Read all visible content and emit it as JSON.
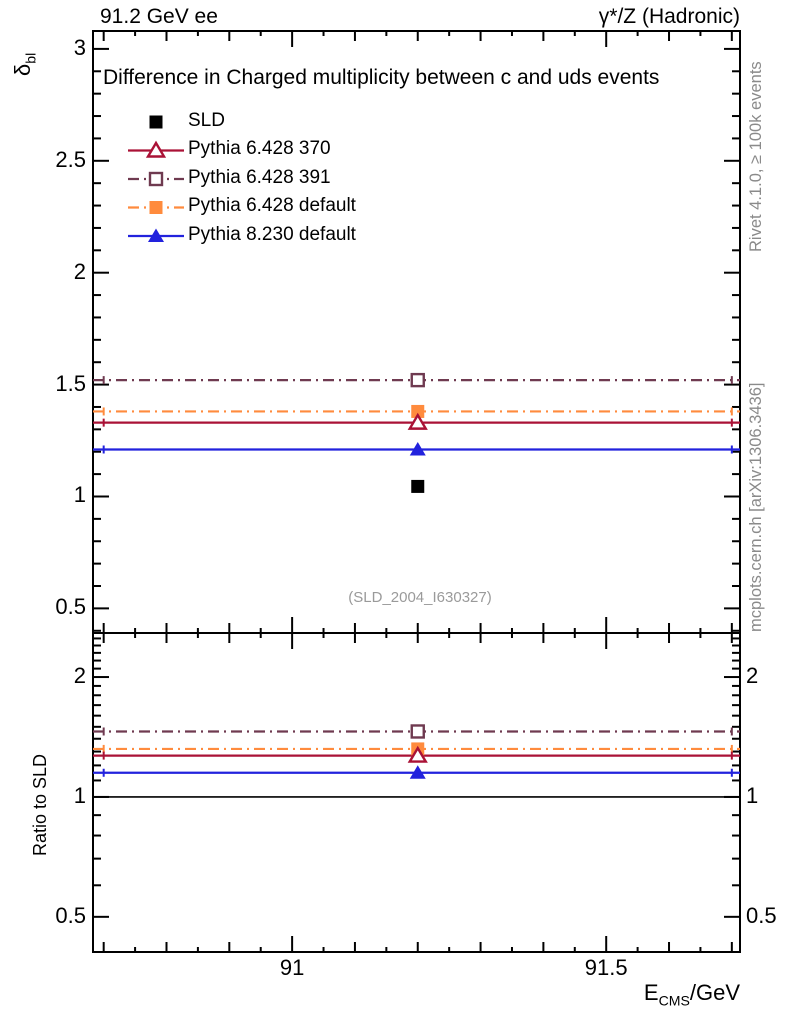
{
  "header": {
    "left": "91.2 GeV ee",
    "right": "γ*/Z (Hadronic)"
  },
  "title": "Difference in Charged multiplicity between c and uds events",
  "watermarks": {
    "rivet": "Rivet 4.1.0, ≥ 100k events",
    "mcplots": "mcplots.cern.ch [arXiv:1306.3436]",
    "ref": "(SLD_2004_I630327)"
  },
  "axes": {
    "x": {
      "label_main": "E",
      "label_sub": "CMS",
      "label_unit": "/GeV",
      "min": 90.683,
      "max": 91.713,
      "minor_step": 0.05,
      "mid_step": 0.1,
      "tick_values": [
        91,
        91.5
      ],
      "tick_labels": [
        "91",
        "91.5"
      ]
    },
    "y_main": {
      "label": "δ",
      "label_sub": "bl",
      "min": 0.39,
      "max": 3.08,
      "minor_step": 0.1,
      "tick_values": [
        0.5,
        1,
        1.5,
        2,
        2.5,
        3
      ],
      "tick_labels": [
        "0.5",
        "1",
        "1.5",
        "2",
        "2.5",
        "3"
      ]
    },
    "y_ratio": {
      "label": "Ratio to SLD",
      "scale": "log",
      "min": 0.408,
      "max": 2.58,
      "tick_values": [
        0.5,
        1,
        2
      ],
      "tick_labels": [
        "0.5",
        "1",
        "2"
      ],
      "minor_tick_values": [
        0.6,
        0.7,
        0.8,
        0.9,
        1.1,
        1.2,
        1.3,
        1.4,
        1.5,
        1.6,
        1.7,
        1.8,
        1.9,
        2.1,
        2.2,
        2.3,
        2.4,
        2.5
      ]
    }
  },
  "chart_data": {
    "type": "line",
    "title": "Difference in Charged multiplicity between c and uds events",
    "xlabel": "E_CMS/GeV",
    "ylabel_main": "delta_bl",
    "ylabel_ratio": "Ratio to SLD",
    "x_range": [
      90.683,
      91.713
    ],
    "y_range_main": [
      0.39,
      3.08
    ],
    "y_range_ratio": [
      0.408,
      2.58
    ],
    "ratio_scale": "log",
    "x_point": 91.2,
    "bin_edges": [
      90.7,
      91.7
    ],
    "reference_ratio": 1.0,
    "series": [
      {
        "name": "SLD",
        "kind": "point",
        "marker": "square-filled",
        "line": null,
        "color": "#000000",
        "value": 1.045,
        "ratio": 1.0
      },
      {
        "name": "Pythia 6.428 370",
        "kind": "hline",
        "marker": "triangle-open",
        "line": "solid",
        "color": "#aa1236",
        "value": 1.33,
        "ratio": 1.27
      },
      {
        "name": "Pythia 6.428 391",
        "kind": "hline",
        "marker": "square-open",
        "line": "dashdot",
        "color": "#6f3a50",
        "value": 1.52,
        "ratio": 1.46
      },
      {
        "name": "Pythia 6.428 default",
        "kind": "hline",
        "marker": "square-filled",
        "line": "dashdot",
        "color": "#ff8b3d",
        "value": 1.38,
        "ratio": 1.32
      },
      {
        "name": "Pythia 8.230 default",
        "kind": "hline",
        "marker": "triangle-filled",
        "line": "solid",
        "color": "#2222dd",
        "value": 1.21,
        "ratio": 1.15
      }
    ]
  }
}
